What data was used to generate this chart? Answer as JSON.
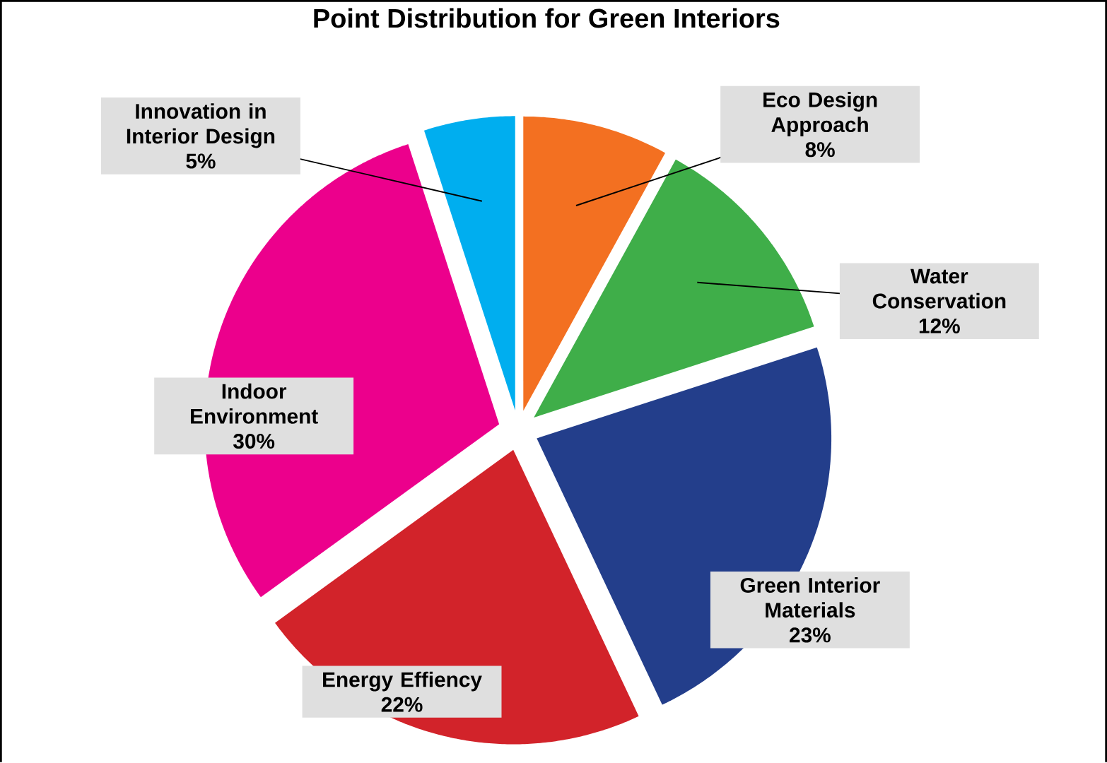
{
  "chart_data": {
    "type": "pie",
    "title": "Point Distribution for Green Interiors",
    "categories": [
      "Eco Design Approach",
      "Water Conservation",
      "Green Interior Materials",
      "Energy Effiency",
      "Indoor Environment",
      "Innovation in Interior Design"
    ],
    "values": [
      8,
      12,
      23,
      22,
      30,
      5
    ],
    "value_labels": [
      "8%",
      "12%",
      "23%",
      "22%",
      "30%",
      "5%"
    ],
    "colors": [
      "#f37021",
      "#3fae49",
      "#233e8b",
      "#d2232a",
      "#ec008c",
      "#00aeef"
    ]
  }
}
